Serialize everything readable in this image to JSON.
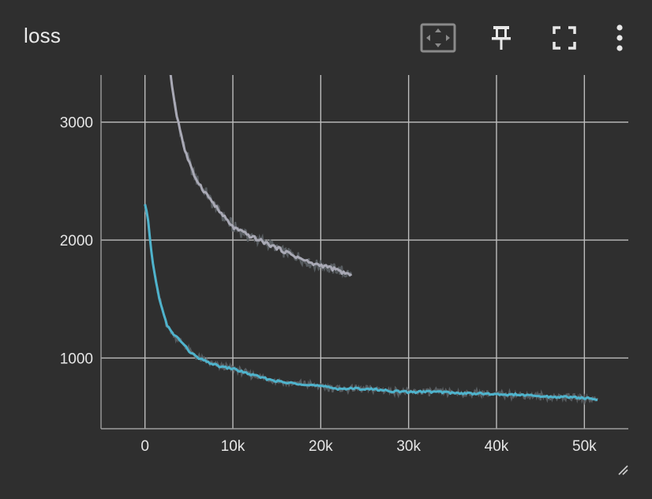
{
  "card": {
    "title": "loss"
  },
  "toolbar": {
    "items": [
      {
        "name": "fit-domain-icon",
        "active": true
      },
      {
        "name": "pin-icon"
      },
      {
        "name": "fullscreen-icon"
      },
      {
        "name": "more-vert-icon"
      }
    ]
  },
  "colors": {
    "background": "#2f2f2f",
    "grid": "#bdbdbd",
    "axis": "#9e9e9e",
    "series_blue": "#4fb3cc",
    "series_gray": "#a9a9b5",
    "raw": "#5a5f63"
  },
  "chart_data": {
    "type": "line",
    "title": "loss",
    "xlabel": "",
    "ylabel": "",
    "xlim": [
      -5000,
      55000
    ],
    "ylim": [
      400,
      3400
    ],
    "xticks": [
      0,
      10000,
      20000,
      30000,
      40000,
      50000
    ],
    "xtick_labels": [
      "0",
      "10k",
      "20k",
      "30k",
      "40k",
      "50k"
    ],
    "yticks": [
      1000,
      2000,
      3000
    ],
    "ytick_labels": [
      "1000",
      "2000",
      "3000"
    ],
    "grid": true,
    "legend": "none",
    "series": [
      {
        "color": "#a9a9b5",
        "x": [
          2900,
          3500,
          4500,
          5500,
          6500,
          7500,
          8500,
          10000,
          11500,
          13000,
          14500,
          16000,
          17500,
          19000,
          20500,
          22000,
          23500
        ],
        "y": [
          3400,
          3100,
          2770,
          2560,
          2440,
          2340,
          2240,
          2110,
          2050,
          2000,
          1950,
          1900,
          1850,
          1800,
          1780,
          1740,
          1700
        ]
      },
      {
        "color": "#4fb3cc",
        "x": [
          0,
          300,
          600,
          1000,
          1500,
          2000,
          2500,
          3000,
          4000,
          5000,
          6000,
          7000,
          8000,
          9000,
          10000,
          12000,
          14000,
          16000,
          18000,
          20000,
          22000,
          24000,
          26000,
          28000,
          30000,
          32000,
          34000,
          36000,
          38000,
          40000,
          42000,
          44000,
          46000,
          48000,
          50000,
          51500
        ],
        "y": [
          2300,
          2200,
          1980,
          1750,
          1550,
          1400,
          1280,
          1220,
          1150,
          1060,
          1000,
          970,
          940,
          920,
          910,
          860,
          820,
          790,
          780,
          760,
          740,
          740,
          735,
          720,
          710,
          715,
          710,
          700,
          700,
          690,
          690,
          680,
          670,
          670,
          660,
          650
        ]
      }
    ]
  }
}
